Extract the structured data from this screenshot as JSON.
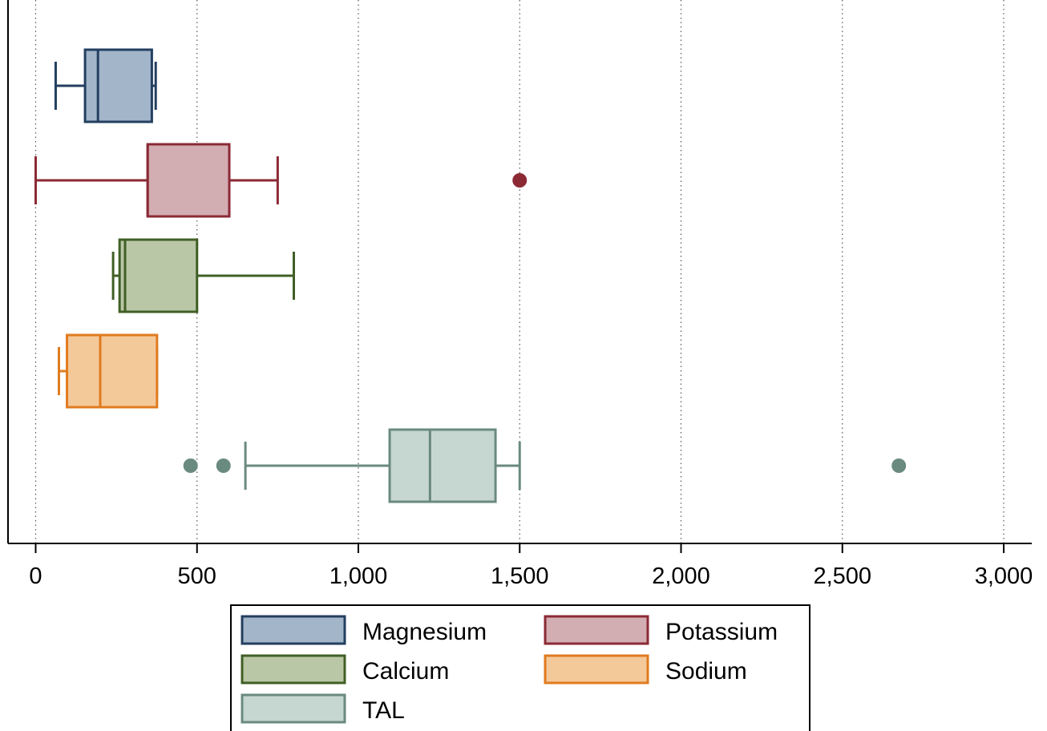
{
  "chart_data": {
    "type": "boxplot",
    "orientation": "horizontal",
    "title": "",
    "xlabel": "",
    "ylabel": "",
    "xlim": [
      0,
      3000
    ],
    "xticks": [
      0,
      500,
      1000,
      1500,
      2000,
      2500,
      3000
    ],
    "xtick_labels": [
      "0",
      "500",
      "1,000",
      "1,500",
      "2,000",
      "2,500",
      "3,000"
    ],
    "grid": "vertical dotted",
    "legend_position": "bottom",
    "series": [
      {
        "name": "Magnesium",
        "whisker_low": 62,
        "q1": 153,
        "median": 193,
        "q3": 360,
        "whisker_high": 372,
        "outliers": [],
        "fill": "#a3b5c9",
        "stroke": "#233f60"
      },
      {
        "name": "Potassium",
        "whisker_low": 0,
        "q1": 347,
        "median": 347,
        "q3": 600,
        "whisker_high": 750,
        "outliers": [
          1500
        ],
        "fill": "#d2adb2",
        "stroke": "#8b2a35"
      },
      {
        "name": "Calcium",
        "whisker_low": 240,
        "q1": 260,
        "median": 277,
        "q3": 500,
        "whisker_high": 800,
        "outliers": [],
        "fill": "#bac7a7",
        "stroke": "#405f25"
      },
      {
        "name": "Sodium",
        "whisker_low": 72,
        "q1": 97,
        "median": 200,
        "q3": 376,
        "whisker_high": 376,
        "outliers": [],
        "fill": "#f4c99a",
        "stroke": "#e07b1f"
      },
      {
        "name": "TAL",
        "whisker_low": 650,
        "q1": 1097,
        "median": 1222,
        "q3": 1425,
        "whisker_high": 1500,
        "outliers": [
          480,
          582,
          2675
        ],
        "fill": "#c6d6d0",
        "stroke": "#6a8a80"
      }
    ]
  }
}
